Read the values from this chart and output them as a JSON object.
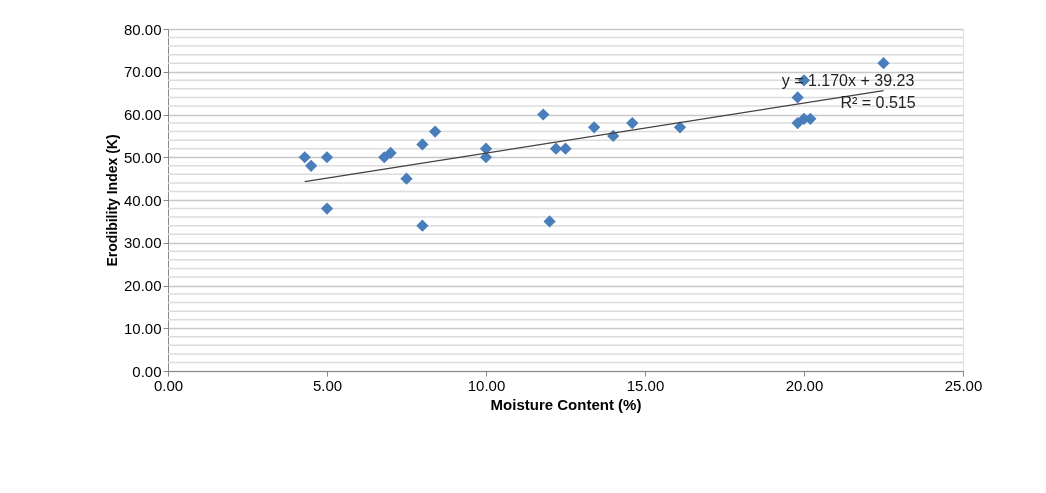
{
  "chart_data": {
    "type": "scatter",
    "xlabel": "Moisture Content (%)",
    "ylabel": "Erodibility Index (K)",
    "x": [
      4.3,
      4.5,
      5.0,
      5.0,
      6.8,
      7.0,
      7.5,
      8.0,
      8.4,
      8.0,
      10.0,
      10.0,
      11.8,
      12.0,
      12.2,
      12.5,
      13.4,
      14.0,
      14.6,
      16.1,
      19.8,
      19.8,
      20.0,
      20.0,
      22.5,
      20.2
    ],
    "series": [
      {
        "color": "#4a7ebb",
        "marker": "diamond",
        "values": [
          50,
          48,
          50,
          38,
          50,
          51,
          45,
          53,
          56,
          34,
          52,
          50,
          60,
          35,
          52,
          52,
          57,
          55,
          58,
          57,
          64,
          58,
          59,
          68,
          72,
          59
        ]
      },
      {
        "type": "line",
        "color": "#404040",
        "line_style": "solid",
        "x": [
          4.3,
          22.5
        ],
        "values": [
          44.3,
          65.6
        ]
      }
    ],
    "annotations": [
      "y = 1.170x + 39.23",
      "R² = 0.515"
    ],
    "xlim": [
      0,
      25
    ],
    "xticks": [
      {
        "value": 0,
        "label": "0.00"
      },
      {
        "value": 5,
        "label": "5.00"
      },
      {
        "value": 10,
        "label": "10.00"
      },
      {
        "value": 15,
        "label": "15.00"
      },
      {
        "value": 20,
        "label": "20.00"
      },
      {
        "value": 25,
        "label": "25.00"
      }
    ],
    "ylim": [
      0,
      80
    ],
    "yticks": [
      {
        "value": 0,
        "label": "0.00"
      },
      {
        "value": 2,
        "label": null
      },
      {
        "value": 4,
        "label": null
      },
      {
        "value": 6,
        "label": null
      },
      {
        "value": 8,
        "label": null
      },
      {
        "value": 10,
        "label": "10.00"
      },
      {
        "value": 12,
        "label": null
      },
      {
        "value": 14,
        "label": null
      },
      {
        "value": 16,
        "label": null
      },
      {
        "value": 18,
        "label": null
      },
      {
        "value": 20,
        "label": "20.00"
      },
      {
        "value": 22,
        "label": null
      },
      {
        "value": 24,
        "label": null
      },
      {
        "value": 26,
        "label": null
      },
      {
        "value": 28,
        "label": null
      },
      {
        "value": 30,
        "label": "30.00"
      },
      {
        "value": 32,
        "label": null
      },
      {
        "value": 34,
        "label": null
      },
      {
        "value": 36,
        "label": null
      },
      {
        "value": 38,
        "label": null
      },
      {
        "value": 40,
        "label": "40.00"
      },
      {
        "value": 42,
        "label": null
      },
      {
        "value": 44,
        "label": null
      },
      {
        "value": 46,
        "label": null
      },
      {
        "value": 48,
        "label": null
      },
      {
        "value": 50,
        "label": "50.00"
      },
      {
        "value": 52,
        "label": null
      },
      {
        "value": 54,
        "label": null
      },
      {
        "value": 56,
        "label": null
      },
      {
        "value": 58,
        "label": null
      },
      {
        "value": 60,
        "label": "60.00"
      },
      {
        "value": 62,
        "label": null
      },
      {
        "value": 64,
        "label": null
      },
      {
        "value": 66,
        "label": null
      },
      {
        "value": 68,
        "label": null
      },
      {
        "value": 70,
        "label": "70.00"
      },
      {
        "value": 72,
        "label": null
      },
      {
        "value": 74,
        "label": null
      },
      {
        "value": 76,
        "label": null
      },
      {
        "value": 78,
        "label": null
      },
      {
        "value": 80,
        "label": "80.00"
      }
    ],
    "grid": "y"
  }
}
